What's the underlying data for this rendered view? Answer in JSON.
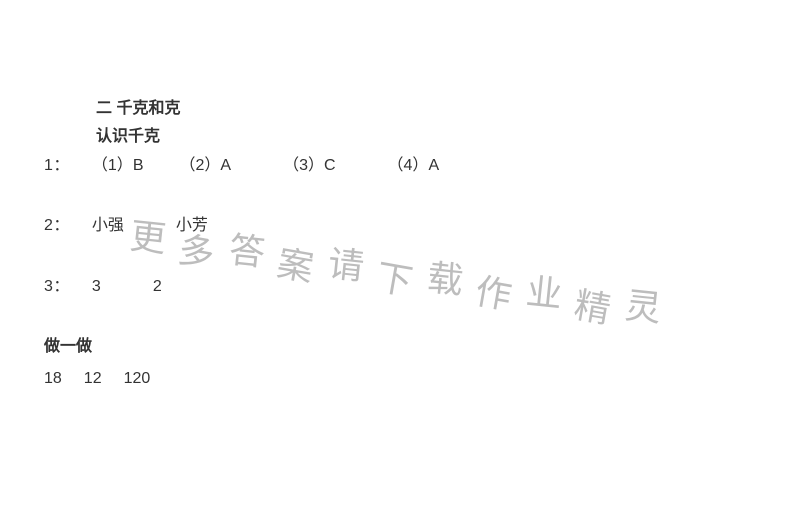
{
  "text_color": "#333333",
  "background_color": "#ffffff",
  "watermark_color": "#b6b6b6",
  "font_size_body": 16,
  "font_size_watermark": 36,
  "title": "二  千克和克",
  "subtitle": "认识千克",
  "lines": {
    "q1_prefix": "1：",
    "q1_p1_label": "（1）",
    "q1_p1_ans": "B",
    "q1_p2_label": "（2）",
    "q1_p2_ans": "A",
    "q1_p3_label": "（3）",
    "q1_p3_ans": "C",
    "q1_p4_label": "（4）",
    "q1_p4_ans": "A",
    "q2_prefix": "2：",
    "q2_a1": "小强",
    "q2_a2": "小芳",
    "q3_prefix": "3：",
    "q3_a1": "3",
    "q3_a2": "2",
    "do_title": "做一做",
    "do_v1": "18",
    "do_v2": "12",
    "do_v3": "120"
  },
  "watermark_text": "更多答案请下载作业精灵"
}
